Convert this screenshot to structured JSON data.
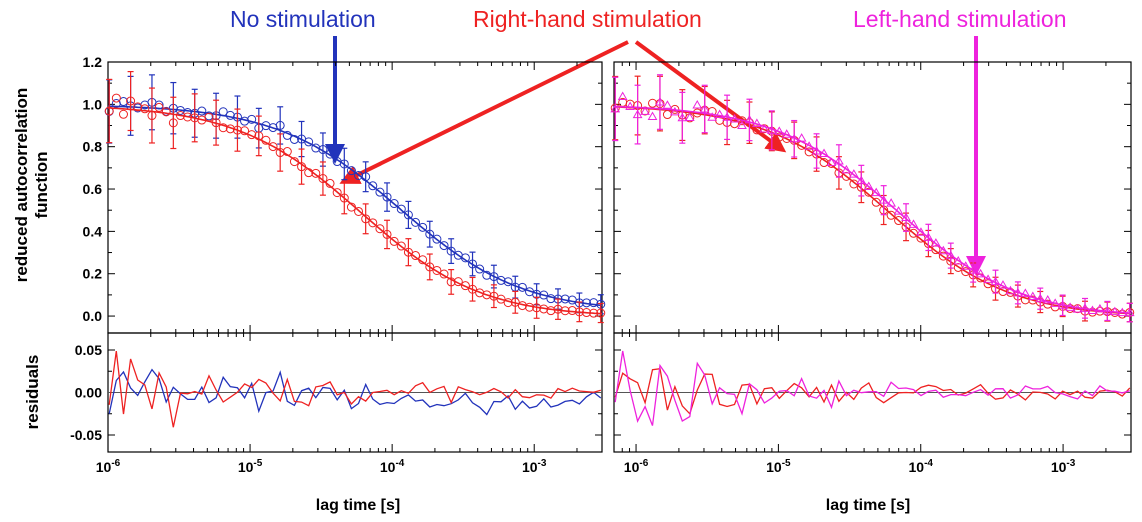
{
  "annotations": {
    "no_stimulation": "No stimulation",
    "right_hand": "Right-hand stimulation",
    "left_hand": "Left-hand stimulation"
  },
  "y_title_main_line1": "reduced autocorrelation",
  "y_title_main_line2": "function",
  "y_title_residuals": "residuals",
  "colors": {
    "no_stim": "#2233bb",
    "right": "#ee2222",
    "left": "#ee22dd",
    "axis": "#000000",
    "zero_line": "#555555"
  },
  "chart_data": [
    {
      "type": "scatter",
      "panel": "left",
      "xlabel": "lag time [s]",
      "ylabel": "reduced autocorrelation function",
      "xscale": "log",
      "xlim": [
        1e-06,
        0.003
      ],
      "ylim": [
        -0.08,
        1.2
      ],
      "y_ticks": [
        "0.0",
        "0.2",
        "0.4",
        "0.6",
        "0.8",
        "1.0",
        "1.2"
      ],
      "x_ticks": [
        "10-6",
        "10-5",
        "10-4",
        "10-3"
      ],
      "series": [
        {
          "key": "no_stim",
          "fit_tau": 0.000115,
          "fit_offset": 0.025
        },
        {
          "key": "right",
          "fit_tau": 6e-05,
          "fit_offset": 0.0
        }
      ],
      "residuals": {
        "ylabel": "residuals",
        "ylim": [
          -0.07,
          0.07
        ],
        "y_ticks": [
          "-0.05",
          "0.00",
          "0.05"
        ]
      }
    },
    {
      "type": "scatter",
      "panel": "right",
      "xlabel": "lag time [s]",
      "xscale": "log",
      "xlim": [
        7e-07,
        0.003
      ],
      "ylim": [
        -0.08,
        1.2
      ],
      "x_ticks": [
        "10-6",
        "10-5",
        "10-4",
        "10-3"
      ],
      "series": [
        {
          "key": "right",
          "fit_tau": 6e-05,
          "fit_offset": 0.0
        },
        {
          "key": "left",
          "fit_tau": 7e-05,
          "fit_offset": 0.0
        }
      ],
      "residuals": {
        "ylim": [
          -0.07,
          0.07
        ]
      }
    }
  ]
}
